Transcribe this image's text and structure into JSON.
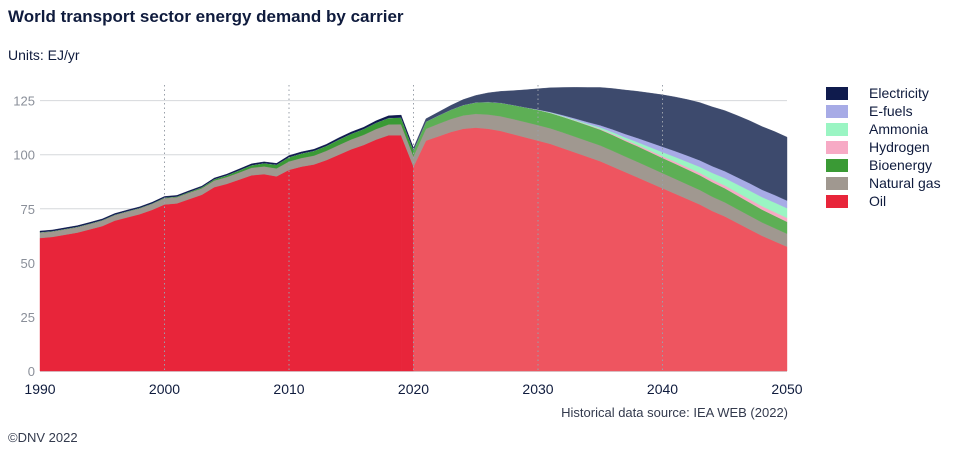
{
  "title": "World transport sector energy demand by carrier",
  "units": "Units: EJ/yr",
  "source": "Historical data source: IEA WEB (2022)",
  "copyright": "©DNV 2022",
  "chart_data": {
    "type": "area",
    "stacked": true,
    "xlim": [
      1990,
      2050
    ],
    "ylim": [
      0,
      135
    ],
    "yticks": [
      0,
      25,
      50,
      75,
      100,
      125
    ],
    "xticks": [
      1990,
      2000,
      2010,
      2020,
      2030,
      2040,
      2050
    ],
    "ytick_labels": [
      "0",
      "25",
      "50",
      "75",
      "100",
      "125"
    ],
    "xtick_labels": [
      "1990",
      "2000",
      "2010",
      "2020",
      "2030",
      "2040",
      "2050"
    ],
    "grid": "horizontal",
    "decade_lines": "dotted vertical at decades",
    "historical_end": 2019,
    "forecast_start": 2020,
    "legend_position": "right",
    "x": [
      1990,
      1991,
      1992,
      1993,
      1994,
      1995,
      1996,
      1997,
      1998,
      1999,
      2000,
      2001,
      2002,
      2003,
      2004,
      2005,
      2006,
      2007,
      2008,
      2009,
      2010,
      2011,
      2012,
      2013,
      2014,
      2015,
      2016,
      2017,
      2018,
      2019,
      2020,
      2021,
      2022,
      2023,
      2024,
      2025,
      2026,
      2027,
      2028,
      2029,
      2030,
      2031,
      2032,
      2033,
      2034,
      2035,
      2036,
      2037,
      2038,
      2039,
      2040,
      2041,
      2042,
      2043,
      2044,
      2045,
      2046,
      2047,
      2048,
      2049,
      2050
    ],
    "series": [
      {
        "name": "Oil",
        "color": "#e8253a",
        "forecast_color": "#ee5560",
        "values": [
          61.5,
          62,
          63,
          64,
          65.5,
          67,
          69.5,
          71,
          72.5,
          74.5,
          77,
          77.5,
          79.5,
          81.5,
          85,
          86.5,
          88.5,
          90.5,
          91,
          90,
          93,
          94.5,
          95.5,
          97.5,
          100,
          102.5,
          104.5,
          107,
          109,
          109,
          94.5,
          106.5,
          108.5,
          110.5,
          112,
          112.5,
          112,
          111,
          109.5,
          108,
          106.5,
          105,
          103,
          101,
          99,
          97,
          94.5,
          92,
          89.5,
          87,
          84.5,
          82,
          79.5,
          77,
          74,
          71.5,
          68.5,
          65.5,
          62.5,
          60,
          57.5
        ]
      },
      {
        "name": "Natural gas",
        "color": "#a09890",
        "values": [
          2.5,
          2.5,
          2.5,
          2.5,
          2.5,
          2.6,
          2.6,
          2.7,
          2.7,
          2.8,
          2.9,
          2.9,
          3,
          3,
          3.1,
          3.2,
          3.3,
          3.5,
          3.6,
          3.7,
          3.9,
          4,
          4.1,
          4.3,
          4.5,
          4.6,
          4.7,
          4.9,
          5,
          5.1,
          4.8,
          5.5,
          5.8,
          6,
          6.2,
          6.4,
          6.6,
          6.8,
          7,
          7.1,
          7.2,
          7.2,
          7.3,
          7.3,
          7.3,
          7.3,
          7.3,
          7.2,
          7.2,
          7.1,
          7,
          6.9,
          6.8,
          6.7,
          6.6,
          6.5,
          6.4,
          6.3,
          6.2,
          6.1,
          6
        ]
      },
      {
        "name": "Bioenergy",
        "color": "#3a9a35",
        "forecast_color": "#5daf55",
        "values": [
          0.2,
          0.2,
          0.2,
          0.2,
          0.2,
          0.2,
          0.2,
          0.2,
          0.2,
          0.2,
          0.3,
          0.3,
          0.4,
          0.5,
          0.6,
          0.8,
          1,
          1.2,
          1.5,
          1.7,
          2,
          2.1,
          2.2,
          2.3,
          2.5,
          2.6,
          2.7,
          2.9,
          3,
          3.1,
          2.8,
          3.3,
          3.8,
          4.3,
          4.8,
          5.3,
          5.8,
          6.2,
          6.5,
          6.8,
          7,
          7.1,
          7.2,
          7.3,
          7.3,
          7.3,
          7.3,
          7.2,
          7.2,
          7.1,
          7,
          7,
          6.9,
          6.8,
          6.7,
          6.5,
          6.3,
          6.1,
          5.9,
          5.7,
          5.5
        ]
      },
      {
        "name": "Hydrogen",
        "color": "#f7aac5",
        "values": [
          0,
          0,
          0,
          0,
          0,
          0,
          0,
          0,
          0,
          0,
          0,
          0,
          0,
          0,
          0,
          0,
          0,
          0,
          0,
          0,
          0,
          0,
          0,
          0,
          0,
          0,
          0,
          0,
          0,
          0,
          0,
          0,
          0,
          0,
          0,
          0,
          0,
          0,
          0,
          0,
          0,
          0.05,
          0.1,
          0.15,
          0.2,
          0.3,
          0.4,
          0.5,
          0.6,
          0.7,
          0.8,
          0.9,
          1,
          1.1,
          1.2,
          1.3,
          1.4,
          1.5,
          1.6,
          1.7,
          1.8
        ]
      },
      {
        "name": "Ammonia",
        "color": "#9af5c3",
        "values": [
          0,
          0,
          0,
          0,
          0,
          0,
          0,
          0,
          0,
          0,
          0,
          0,
          0,
          0,
          0,
          0,
          0,
          0,
          0,
          0,
          0,
          0,
          0,
          0,
          0,
          0,
          0,
          0,
          0,
          0,
          0,
          0,
          0,
          0,
          0,
          0,
          0,
          0,
          0,
          0,
          0.1,
          0.2,
          0.3,
          0.4,
          0.5,
          0.7,
          0.9,
          1.1,
          1.3,
          1.6,
          1.9,
          2.2,
          2.5,
          2.8,
          3.1,
          3.4,
          3.7,
          4,
          4.2,
          4.4,
          4.5
        ]
      },
      {
        "name": "E-fuels",
        "color": "#a7abe6",
        "values": [
          0,
          0,
          0,
          0,
          0,
          0,
          0,
          0,
          0,
          0,
          0,
          0,
          0,
          0,
          0,
          0,
          0,
          0,
          0,
          0,
          0,
          0,
          0,
          0,
          0,
          0,
          0,
          0,
          0,
          0,
          0,
          0,
          0,
          0,
          0,
          0,
          0,
          0,
          0,
          0,
          0.1,
          0.2,
          0.4,
          0.6,
          0.8,
          1,
          1.3,
          1.6,
          1.9,
          2.2,
          2.5,
          2.7,
          2.9,
          3,
          3.1,
          3.2,
          3.3,
          3.4,
          3.4,
          3.5,
          3.5
        ]
      },
      {
        "name": "Electricity",
        "color": "#0f1b4d",
        "forecast_color": "#3d4a6d",
        "values": [
          0.5,
          0.5,
          0.5,
          0.5,
          0.5,
          0.5,
          0.5,
          0.5,
          0.5,
          0.5,
          0.5,
          0.5,
          0.5,
          0.5,
          0.5,
          0.5,
          0.6,
          0.6,
          0.6,
          0.6,
          0.7,
          0.7,
          0.7,
          0.7,
          0.8,
          0.8,
          0.8,
          0.9,
          1,
          1.1,
          1,
          1.3,
          1.6,
          2,
          2.5,
          3.2,
          4.2,
          5.3,
          6.6,
          8.1,
          9.6,
          11.2,
          12.8,
          14.4,
          16,
          17.5,
          18.9,
          20.3,
          21.6,
          22.8,
          24,
          25,
          25.9,
          26.7,
          27.4,
          28,
          28.5,
          28.9,
          29.2,
          29.3,
          29.3
        ]
      }
    ]
  }
}
